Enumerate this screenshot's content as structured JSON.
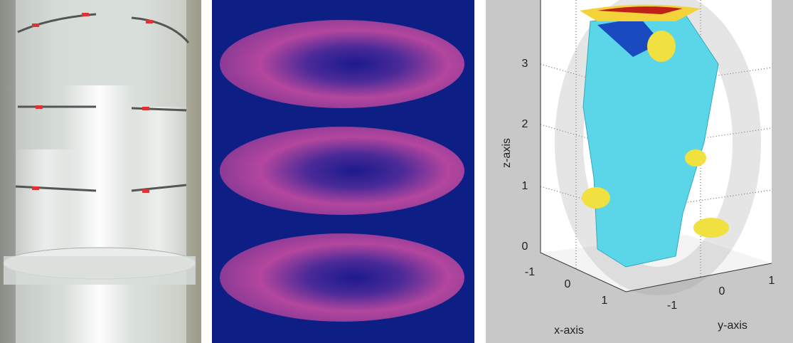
{
  "plot": {
    "z_label": "z-axis",
    "x_label": "x-axis",
    "y_label": "y-axis",
    "zticks": [
      0,
      1,
      2,
      3
    ],
    "xticks": [
      -1,
      0,
      1
    ],
    "yticks": [
      -1,
      0,
      1
    ]
  }
}
